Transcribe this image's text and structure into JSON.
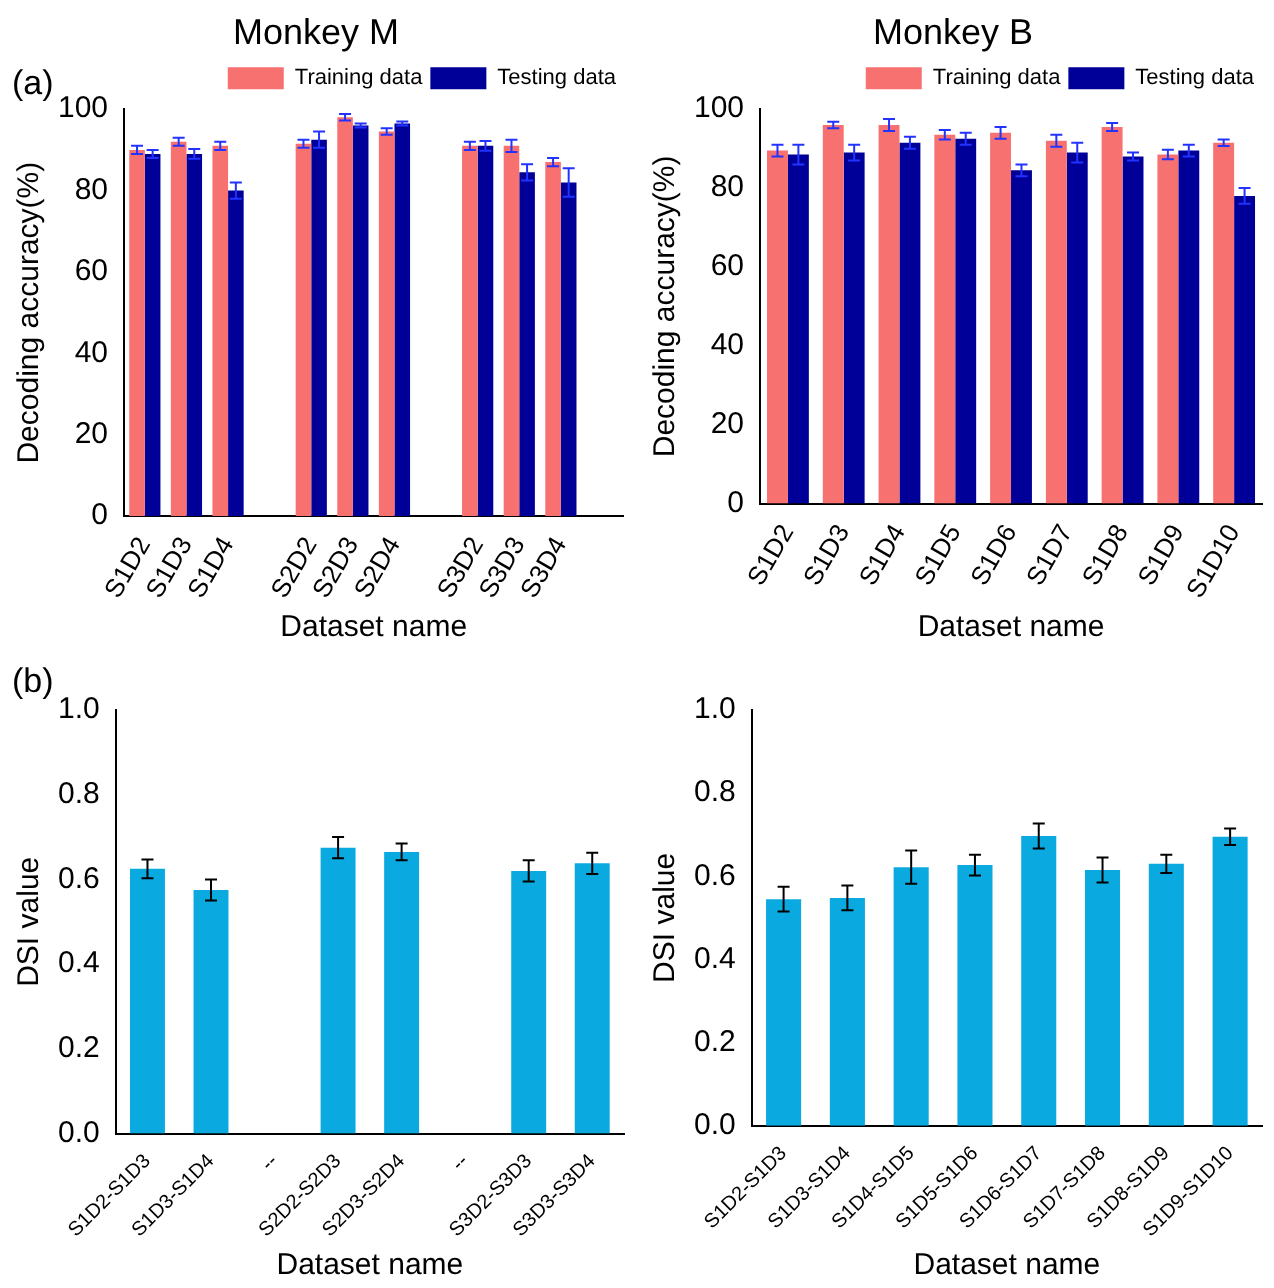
{
  "chart_data": [
    {
      "type": "bar",
      "title": "Monkey M",
      "annotations": [
        "(a)"
      ],
      "xlabel": "Dataset name",
      "ylabel": "Decoding accuracy(%)",
      "categories": [
        "S1D2",
        "S1D3",
        "S1D4",
        null,
        "S2D2",
        "S2D3",
        "S2D4",
        null,
        "S3D2",
        "S3D3",
        "S3D4",
        null
      ],
      "series": [
        {
          "name": "Training data",
          "color": "#f87171",
          "values": [
            90,
            92,
            91,
            null,
            91.5,
            98,
            94.5,
            null,
            91,
            91,
            87,
            null
          ],
          "errors": [
            1,
            1,
            1,
            null,
            1,
            0.8,
            0.8,
            null,
            1,
            1.5,
            1,
            null
          ]
        },
        {
          "name": "Testing data",
          "color": "#000099",
          "values": [
            89,
            89,
            80,
            null,
            92.5,
            96,
            96.5,
            null,
            91,
            84.5,
            82,
            null
          ],
          "errors": [
            1,
            1.2,
            2,
            null,
            2,
            0.5,
            0.5,
            null,
            1.2,
            2,
            3.5,
            null
          ]
        }
      ],
      "ylim": [
        0,
        100
      ],
      "yticks": [
        0,
        20,
        40,
        60,
        80,
        100
      ],
      "grid": false,
      "legend": "top right"
    },
    {
      "type": "bar",
      "title": "Monkey B",
      "xlabel": "Dataset name",
      "ylabel": "Decoding accuracy(%)",
      "categories": [
        "S1D2",
        "S1D3",
        "S1D4",
        "S1D5",
        "S1D6",
        "S1D7",
        "S1D8",
        "S1D9",
        "S1D10"
      ],
      "series": [
        {
          "name": "Training data",
          "color": "#f87171",
          "values": [
            89.5,
            96,
            96,
            93.5,
            94,
            92,
            95.5,
            88.5,
            91.5
          ],
          "errors": [
            1.5,
            0.8,
            1.5,
            1.2,
            1.5,
            1.5,
            1,
            1.2,
            0.8
          ]
        },
        {
          "name": "Testing data",
          "color": "#000099",
          "values": [
            88.5,
            89,
            91.5,
            92.5,
            84.5,
            89,
            88,
            89.5,
            78
          ],
          "errors": [
            2.5,
            2,
            1.5,
            1.5,
            1.5,
            2.5,
            1,
            1.5,
            2
          ]
        }
      ],
      "ylim": [
        0,
        100
      ],
      "yticks": [
        0,
        20,
        40,
        60,
        80,
        100
      ],
      "grid": false,
      "legend": "top right"
    },
    {
      "type": "bar",
      "annotations": [
        "(b)"
      ],
      "xlabel": "Dataset name",
      "ylabel": "DSI value",
      "categories": [
        "S1D2-S1D3",
        "S1D3-S1D4",
        "--",
        "S2D2-S2D3",
        "S2D3-S2D4",
        "--",
        "S3D2-S3D3",
        "S3D3-S3D4"
      ],
      "color": "#0aaae0",
      "values": [
        0.625,
        0.575,
        null,
        0.675,
        0.665,
        null,
        0.62,
        0.638
      ],
      "errors": [
        0.022,
        0.025,
        null,
        0.025,
        0.02,
        null,
        0.025,
        0.025
      ],
      "ylim": [
        0,
        1
      ],
      "yticks": [
        {
          "value": 0,
          "label": "0.0"
        },
        {
          "value": 0.2,
          "label": "0.2"
        },
        {
          "value": 0.4,
          "label": "0.4"
        },
        {
          "value": 0.6,
          "label": "0.6"
        },
        {
          "value": 0.8,
          "label": "0.8"
        },
        {
          "value": 1,
          "label": "1.0"
        }
      ],
      "grid": false
    },
    {
      "type": "bar",
      "xlabel": "Dataset name",
      "ylabel": "DSI value",
      "categories": [
        "S1D2-S1D3",
        "S1D3-S1D4",
        "S1D4-S1D5",
        "S1D5-S1D6",
        "S1D6-S1D7",
        "S1D7-S1D8",
        "S1D8-S1D9",
        "S1D9-S1D10"
      ],
      "color": "#0aaae0",
      "values": [
        0.545,
        0.548,
        0.622,
        0.627,
        0.697,
        0.615,
        0.63,
        0.695
      ],
      "errors": [
        0.03,
        0.03,
        0.04,
        0.025,
        0.03,
        0.03,
        0.022,
        0.02
      ],
      "ylim": [
        0,
        1
      ],
      "yticks": [
        {
          "value": 0,
          "label": "0.0"
        },
        {
          "value": 0.2,
          "label": "0.2"
        },
        {
          "value": 0.4,
          "label": "0.4"
        },
        {
          "value": 0.6,
          "label": "0.6"
        },
        {
          "value": 0.8,
          "label": "0.8"
        },
        {
          "value": 1,
          "label": "1.0"
        }
      ],
      "grid": false
    }
  ]
}
